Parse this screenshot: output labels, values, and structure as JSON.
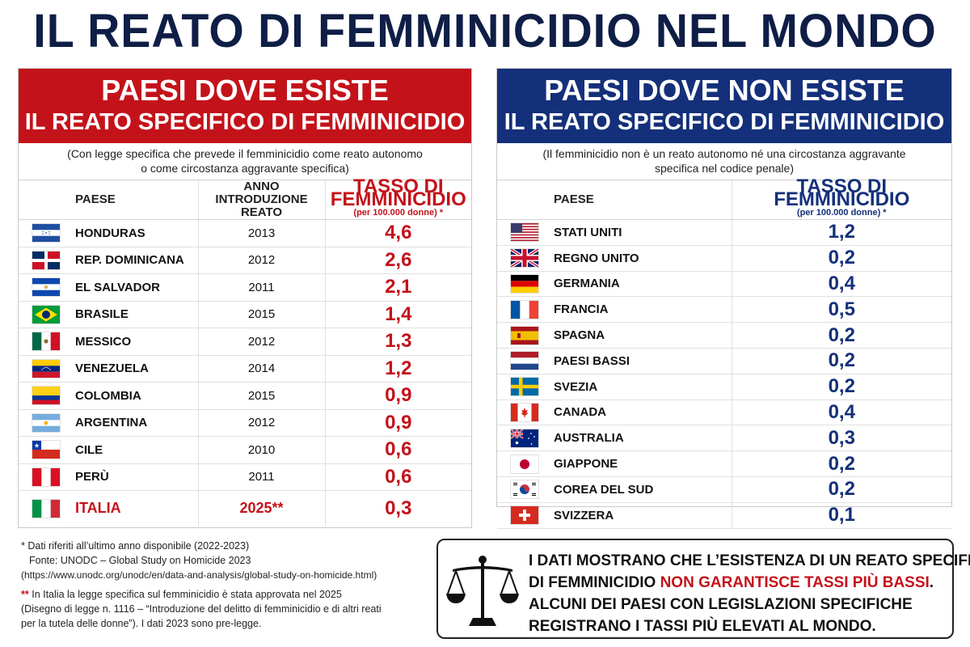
{
  "title": "IL REATO DI FEMMINICIDIO NEL MONDO",
  "left_panel": {
    "heading_line1": "PAESI DOVE ESISTE",
    "heading_line2": "IL REATO SPECIFICO DI FEMMINICIDIO",
    "subtitle_line1": "(Con legge specifica che prevede il femminicidio come reato autonomo",
    "subtitle_line2": "o come circostanza aggravante specifica)",
    "col_country": "PAESE",
    "col_year_line1": "ANNO INTRODUZIONE",
    "col_year_line2": "REATO",
    "col_rate_line1": "TASSO DI FEMMINICIDIO",
    "col_rate_line2": "(per 100.000 donne) *",
    "accent_color": "#c4121a"
  },
  "right_panel": {
    "heading_line1": "PAESI DOVE NON ESISTE",
    "heading_line2": "IL REATO SPECIFICO DI FEMMINICIDIO",
    "subtitle_line1": "(Il femminicidio non è un reato autonomo né una circostanza aggravante",
    "subtitle_line2": "specifica nel codice penale)",
    "col_country": "PAESE",
    "col_rate_line1": "TASSO DI FEMMINICIDIO",
    "col_rate_line2": "(per 100.000 donne) *",
    "accent_color": "#14307a"
  },
  "chart_data": [
    {
      "type": "table",
      "columns": [
        "PAESE",
        "ANNO INTRODUZIONE REATO",
        "TASSO DI FEMMINICIDIO (per 100.000 donne) *"
      ],
      "rows": [
        {
          "country": "HONDURAS",
          "flag": "honduras-flag",
          "year": "2013",
          "rate": "4,6"
        },
        {
          "country": "REP. DOMINICANA",
          "flag": "dominican-republic-flag",
          "year": "2012",
          "rate": "2,6"
        },
        {
          "country": "EL SALVADOR",
          "flag": "el-salvador-flag",
          "year": "2011",
          "rate": "2,1"
        },
        {
          "country": "BRASILE",
          "flag": "brazil-flag",
          "year": "2015",
          "rate": "1,4"
        },
        {
          "country": "MESSICO",
          "flag": "mexico-flag",
          "year": "2012",
          "rate": "1,3"
        },
        {
          "country": "VENEZUELA",
          "flag": "venezuela-flag",
          "year": "2014",
          "rate": "1,2"
        },
        {
          "country": "COLOMBIA",
          "flag": "colombia-flag",
          "year": "2015",
          "rate": "0,9"
        },
        {
          "country": "ARGENTINA",
          "flag": "argentina-flag",
          "year": "2012",
          "rate": "0,9"
        },
        {
          "country": "CILE",
          "flag": "chile-flag",
          "year": "2010",
          "rate": "0,6"
        },
        {
          "country": "PERÙ",
          "flag": "peru-flag",
          "year": "2011",
          "rate": "0,6"
        },
        {
          "country": "ITALIA",
          "flag": "italy-flag",
          "year": "2025**",
          "rate": "0,3"
        }
      ]
    },
    {
      "type": "table",
      "columns": [
        "PAESE",
        "TASSO DI FEMMINICIDIO (per 100.000 donne) *"
      ],
      "rows": [
        {
          "country": "STATI UNITI",
          "flag": "usa-flag",
          "rate": "1,2"
        },
        {
          "country": "REGNO UNITO",
          "flag": "uk-flag",
          "rate": "0,2"
        },
        {
          "country": "GERMANIA",
          "flag": "germany-flag",
          "rate": "0,4"
        },
        {
          "country": "FRANCIA",
          "flag": "france-flag",
          "rate": "0,5"
        },
        {
          "country": "SPAGNA",
          "flag": "spain-flag",
          "rate": "0,2"
        },
        {
          "country": "PAESI BASSI",
          "flag": "netherlands-flag",
          "rate": "0,2"
        },
        {
          "country": "SVEZIA",
          "flag": "sweden-flag",
          "rate": "0,2"
        },
        {
          "country": "CANADA",
          "flag": "canada-flag",
          "rate": "0,4"
        },
        {
          "country": "AUSTRALIA",
          "flag": "australia-flag",
          "rate": "0,3"
        },
        {
          "country": "GIAPPONE",
          "flag": "japan-flag",
          "rate": "0,2"
        },
        {
          "country": "COREA DEL SUD",
          "flag": "south-korea-flag",
          "rate": "0,2"
        },
        {
          "country": "SVIZZERA",
          "flag": "switzerland-flag",
          "rate": "0,1"
        }
      ]
    }
  ],
  "footnotes": {
    "star1": "*",
    "note1_line1": "Dati riferiti all’ultimo anno disponibile (2022-2023)",
    "note1_line2": "Fonte: UNODC – Global Study on Homicide 2023",
    "note1_url": "(https://www.unodc.org/unodc/en/data-and-analysis/global-study-on-homicide.html)",
    "star2": "**",
    "note2_line1": "In Italia la legge specifica sul femminicidio è stata approvata nel 2025",
    "note2_line2": "(Disegno di legge n. 1116 – “Introduzione del delitto di femminicidio e di altri reati",
    "note2_line3": "per la tutela delle donne”). I dati 2023 sono pre-legge."
  },
  "callout": {
    "icon": "scale-of-justice-icon",
    "line1": "I DATI MOSTRANO CHE L’ESISTENZA DI UN REATO SPECIFICO",
    "line2_start": "DI FEMMINICIDIO ",
    "line2_highlight": "NON GARANTISCE TASSI PIÙ BASSI",
    "line2_end": ".",
    "line3": "ALCUNI DEI PAESI CON LEGISLAZIONI SPECIFICHE",
    "line4": "REGISTRANO I TASSI PIÙ ELEVATI AL MONDO."
  }
}
